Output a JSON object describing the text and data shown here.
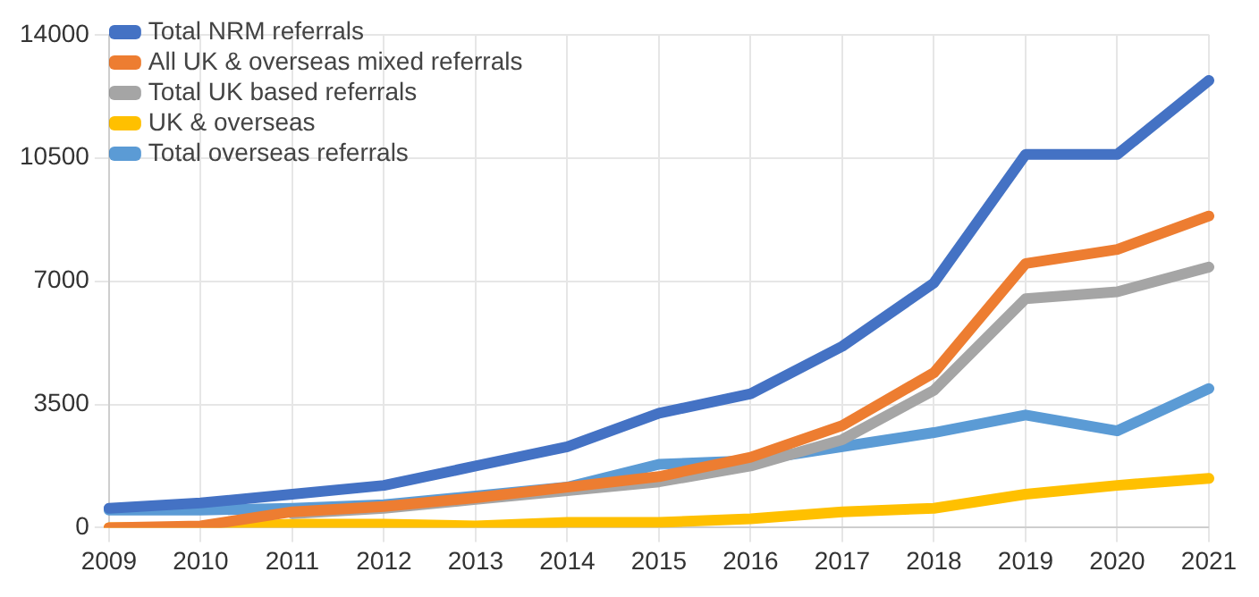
{
  "chart_data": {
    "type": "line",
    "categories": [
      "2009",
      "2010",
      "2011",
      "2012",
      "2013",
      "2014",
      "2015",
      "2016",
      "2017",
      "2018",
      "2019",
      "2020",
      "2021"
    ],
    "series": [
      {
        "name": "Total NRM referrals",
        "color": "#4472c4",
        "values": [
          550,
          700,
          950,
          1200,
          1750,
          2300,
          3250,
          3800,
          5150,
          6950,
          10600,
          10600,
          12700
        ]
      },
      {
        "name": "All UK & overseas mixed referrals",
        "color": "#ed7d31",
        "values": [
          0,
          50,
          450,
          600,
          850,
          1150,
          1450,
          2000,
          2900,
          4400,
          7500,
          7900,
          8850
        ]
      },
      {
        "name": "Total UK based referrals",
        "color": "#a5a5a5",
        "values": [
          null,
          null,
          400,
          550,
          800,
          1050,
          1300,
          1750,
          2500,
          3900,
          6500,
          6700,
          7400
        ]
      },
      {
        "name": "UK & overseas",
        "color": "#ffc000",
        "values": [
          0,
          0,
          100,
          100,
          50,
          150,
          150,
          250,
          450,
          550,
          950,
          1200,
          1400
        ]
      },
      {
        "name": "Total overseas referrals",
        "color": "#5b9bd5",
        "values": [
          500,
          500,
          550,
          650,
          900,
          1150,
          1800,
          1900,
          2300,
          2700,
          3200,
          2750,
          3950
        ]
      }
    ],
    "ylim": [
      0,
      14000
    ],
    "yticks": [
      0,
      3500,
      7000,
      10500,
      14000
    ],
    "grid": true,
    "legend": "top left",
    "marker": "none",
    "line_style": "solid"
  }
}
